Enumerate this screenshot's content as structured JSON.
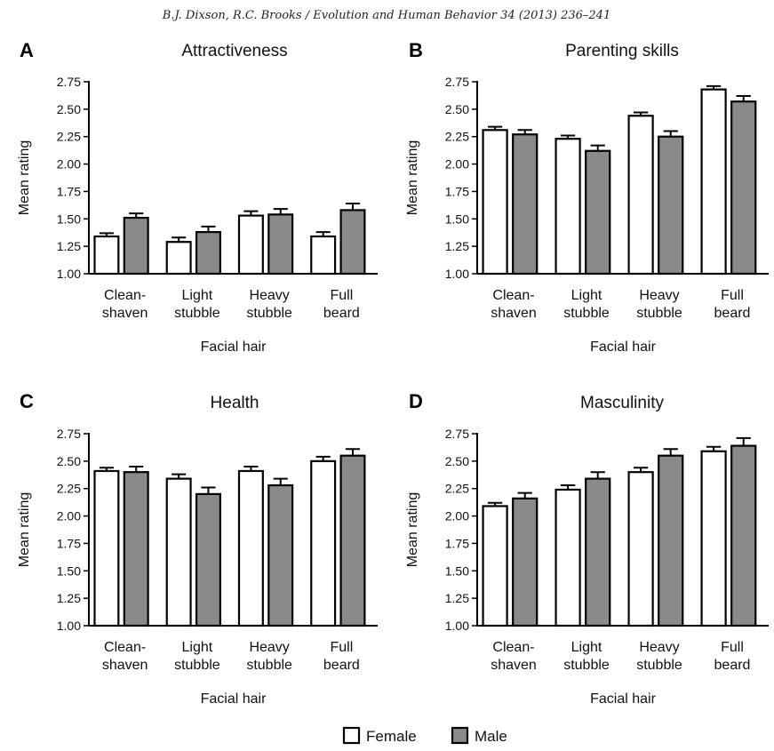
{
  "header": {
    "citation": "B.J. Dixson, R.C. Brooks / Evolution and Human Behavior 34 (2013) 236–241"
  },
  "colors": {
    "female_fill": "#ffffff",
    "male_fill": "#8a8a8a",
    "stroke": "#000000"
  },
  "legend": {
    "position": "bottom-center",
    "items": [
      {
        "label": "Female",
        "color": "#ffffff"
      },
      {
        "label": "Male",
        "color": "#8a8a8a"
      }
    ]
  },
  "chart_data": [
    {
      "panel": "A",
      "type": "bar",
      "title": "Attractiveness",
      "xlabel": "Facial hair",
      "ylabel": "Mean rating",
      "ylim": [
        1.0,
        2.75
      ],
      "yticks": [
        "1.00",
        "1.25",
        "1.50",
        "1.75",
        "2.00",
        "2.25",
        "2.50",
        "2.75"
      ],
      "categories": [
        [
          "Clean-",
          "shaven"
        ],
        [
          "Light",
          "stubble"
        ],
        [
          "Heavy",
          "stubble"
        ],
        [
          "Full",
          "beard"
        ]
      ],
      "series": [
        {
          "name": "Female",
          "values": [
            1.34,
            1.29,
            1.53,
            1.34
          ],
          "errors": [
            0.03,
            0.04,
            0.04,
            0.04
          ]
        },
        {
          "name": "Male",
          "values": [
            1.51,
            1.38,
            1.54,
            1.58
          ],
          "errors": [
            0.04,
            0.05,
            0.05,
            0.06
          ]
        }
      ]
    },
    {
      "panel": "B",
      "type": "bar",
      "title": "Parenting skills",
      "xlabel": "Facial hair",
      "ylabel": "Mean rating",
      "ylim": [
        1.0,
        2.75
      ],
      "yticks": [
        "1.00",
        "1.25",
        "1.50",
        "1.75",
        "2.00",
        "2.25",
        "2.50",
        "2.75"
      ],
      "categories": [
        [
          "Clean-",
          "shaven"
        ],
        [
          "Light",
          "stubble"
        ],
        [
          "Heavy",
          "stubble"
        ],
        [
          "Full",
          "beard"
        ]
      ],
      "series": [
        {
          "name": "Female",
          "values": [
            2.31,
            2.23,
            2.44,
            2.68
          ],
          "errors": [
            0.03,
            0.03,
            0.03,
            0.03
          ]
        },
        {
          "name": "Male",
          "values": [
            2.27,
            2.12,
            2.25,
            2.57
          ],
          "errors": [
            0.04,
            0.05,
            0.05,
            0.05
          ]
        }
      ]
    },
    {
      "panel": "C",
      "type": "bar",
      "title": "Health",
      "xlabel": "Facial hair",
      "ylabel": "Mean rating",
      "ylim": [
        1.0,
        2.75
      ],
      "yticks": [
        "1.00",
        "1.25",
        "1.50",
        "1.75",
        "2.00",
        "2.25",
        "2.50",
        "2.75"
      ],
      "categories": [
        [
          "Clean-",
          "shaven"
        ],
        [
          "Light",
          "stubble"
        ],
        [
          "Heavy",
          "stubble"
        ],
        [
          "Full",
          "beard"
        ]
      ],
      "series": [
        {
          "name": "Female",
          "values": [
            2.41,
            2.34,
            2.41,
            2.5
          ],
          "errors": [
            0.03,
            0.04,
            0.04,
            0.04
          ]
        },
        {
          "name": "Male",
          "values": [
            2.4,
            2.2,
            2.28,
            2.55
          ],
          "errors": [
            0.05,
            0.06,
            0.06,
            0.06
          ]
        }
      ]
    },
    {
      "panel": "D",
      "type": "bar",
      "title": "Masculinity",
      "xlabel": "Facial hair",
      "ylabel": "Mean rating",
      "ylim": [
        1.0,
        2.75
      ],
      "yticks": [
        "1.00",
        "1.25",
        "1.50",
        "1.75",
        "2.00",
        "2.25",
        "2.50",
        "2.75"
      ],
      "categories": [
        [
          "Clean-",
          "shaven"
        ],
        [
          "Light",
          "stubble"
        ],
        [
          "Heavy",
          "stubble"
        ],
        [
          "Full",
          "beard"
        ]
      ],
      "series": [
        {
          "name": "Female",
          "values": [
            2.09,
            2.24,
            2.4,
            2.59
          ],
          "errors": [
            0.03,
            0.04,
            0.04,
            0.04
          ]
        },
        {
          "name": "Male",
          "values": [
            2.16,
            2.34,
            2.55,
            2.64
          ],
          "errors": [
            0.05,
            0.06,
            0.06,
            0.07
          ]
        }
      ]
    }
  ]
}
